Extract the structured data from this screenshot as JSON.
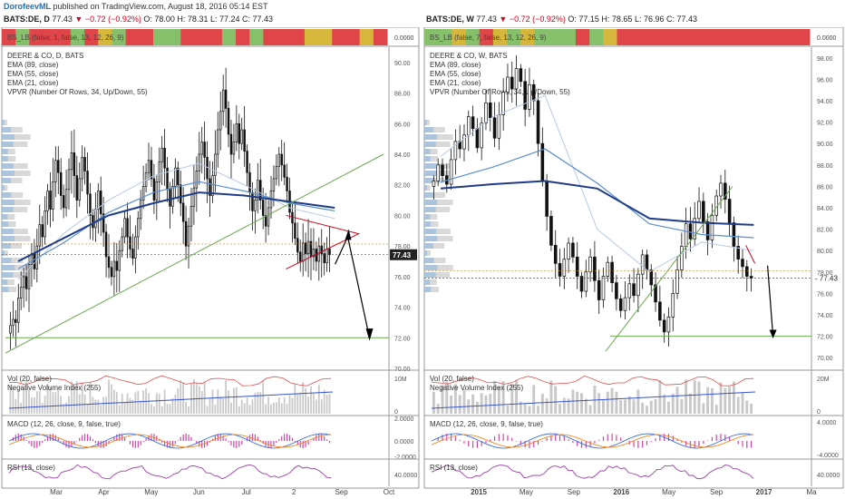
{
  "header": {
    "user": "DorofeevML",
    "published": "published on TradingView.com, August 18, 2016 05:14 EST"
  },
  "panels": [
    {
      "symbol_line": "BATS:DE, D",
      "last": "77.43",
      "change": "−0.72 (−0.92%)",
      "ohlc": "O: 78.00  H: 78.31  L: 77.24  C: 77.43",
      "indicator_strip_label": "BS_LB (false, 1, false, 13, 12, 26, 9)",
      "strip_value": "0.0000",
      "legend": [
        "DEERE & CO, D, BATS",
        "EMA (89, close)",
        "EMA (55, close)",
        "EMA (21, close)",
        "VPVR (Number Of Rows, 34, Up/Down, 55)"
      ],
      "price_ticks": [
        "90.00",
        "88.00",
        "86.00",
        "84.00",
        "82.00",
        "80.00",
        "78.00",
        "76.00",
        "74.00",
        "72.00",
        "70.00"
      ],
      "price_tag": "77.43",
      "vol_labels": [
        "Vol (20, false)",
        "Negative Volume Index (255)"
      ],
      "vol_ticks": [
        "10M",
        "0"
      ],
      "macd_label": "MACD (12, 26, close, 9, false, true)",
      "macd_ticks": [
        "2.0000",
        "0.0000",
        "-2.0000"
      ],
      "rsi_label": "RSI (13, close)",
      "rsi_ticks": [
        "40.0000"
      ],
      "time_ticks": [
        "Mar",
        "Apr",
        "May",
        "Jun",
        "Jul",
        "2",
        "Sep",
        "Oct"
      ]
    },
    {
      "symbol_line": "BATS:DE, W",
      "last": "77.43",
      "change": "−0.72 (−0.92%)",
      "ohlc": "O: 77.15  H: 78.65  L: 76.96  C: 77.43",
      "indicator_strip_label": "BS_LB (false, 7, false, 13, 12, 26, 9)",
      "strip_value": "0.0000",
      "legend": [
        "DEERE & CO, W, BATS",
        "EMA (89, close)",
        "EMA (55, close)",
        "EMA (21, close)",
        "VPVR (Number Of Rows, 34, Up/Down, 55)"
      ],
      "price_ticks": [
        "98.00",
        "96.00",
        "94.00",
        "92.00",
        "90.00",
        "88.00",
        "86.00",
        "84.00",
        "82.00",
        "80.00",
        "78.00",
        "76.00",
        "74.00",
        "72.00",
        "70.00"
      ],
      "price_tag": "77.43",
      "vol_labels": [
        "Vol (20, false)",
        "Negative Volume Index (255)"
      ],
      "vol_ticks": [
        "20M",
        "0"
      ],
      "macd_label": "MACD (12, 26, close, 9, false, true)",
      "macd_ticks": [
        "4.0000",
        "-4.0000"
      ],
      "rsi_label": "RSI (13, close)",
      "rsi_ticks": [
        "40.0000"
      ],
      "time_ticks": [
        "2015",
        "May",
        "Sep",
        "2016",
        "May",
        "Sep",
        "2017",
        "Ma"
      ]
    }
  ],
  "colors": {
    "ema89": "#1f3c88",
    "ema55": "#5b8fd0",
    "ema21": "#b7c9e6",
    "trend_green": "#6aa84f",
    "wedge_red": "#d0021b",
    "vol_bar": "#c8c8c8",
    "nvi_red": "#e05050",
    "nvi_blue": "#3355cc",
    "rsi": "#9b3fa8",
    "macd_blue": "#3b6fd6",
    "macd_orange": "#f08a24",
    "macd_hist": "#d444a8",
    "strip_red": "#e0454a",
    "strip_green": "#86c06a",
    "strip_yellow": "#d7b63c"
  },
  "chart_data": [
    {
      "type": "candlestick",
      "title": "DEERE & CO, D, BATS",
      "ylim": [
        70,
        91
      ],
      "x_ticks": [
        "Mar",
        "Apr",
        "May",
        "Jun",
        "Jul",
        "2",
        "Sep",
        "Oct"
      ],
      "closes": [
        72.8,
        73.2,
        73.0,
        74.6,
        75.3,
        76.0,
        75.2,
        76.8,
        77.5,
        76.5,
        78.0,
        79.4,
        78.6,
        80.3,
        81.6,
        80.4,
        82.2,
        83.6,
        82.8,
        81.3,
        80.5,
        81.7,
        83.0,
        84.1,
        82.6,
        81.0,
        82.4,
        83.8,
        82.9,
        81.4,
        80.0,
        79.2,
        80.4,
        81.6,
        80.1,
        78.9,
        77.3,
        76.6,
        76.0,
        77.0,
        76.4,
        77.7,
        78.6,
        79.8,
        78.6,
        77.8,
        77.2,
        78.6,
        79.8,
        81.0,
        81.9,
        82.8,
        83.6,
        82.4,
        81.0,
        82.2,
        83.5,
        84.4,
        83.1,
        81.7,
        80.6,
        81.9,
        83.1,
        82.0,
        80.8,
        79.6,
        78.0,
        79.3,
        80.6,
        81.8,
        82.9,
        84.0,
        84.8,
        83.8,
        82.4,
        81.3,
        82.6,
        84.0,
        85.6,
        86.8,
        88.2,
        87.0,
        85.3,
        84.0,
        84.8,
        86.0,
        84.7,
        85.6,
        84.2,
        82.8,
        81.5,
        80.3,
        81.0,
        82.3,
        81.0,
        80.0,
        79.3,
        80.5,
        81.6,
        82.4,
        83.2,
        84.0,
        83.3,
        82.5,
        81.6,
        80.2,
        79.5,
        78.5,
        77.6,
        77.0,
        78.2,
        77.5,
        78.3,
        77.3,
        77.8,
        77.0,
        78.0,
        77.5,
        76.9,
        77.8,
        77.43
      ],
      "ema89": [
        77.0,
        78.5,
        80.0,
        80.8,
        81.5,
        81.3,
        80.9,
        80.5
      ],
      "ema55": [
        76.5,
        78.2,
        80.2,
        81.5,
        82.2,
        81.6,
        80.8,
        80.3
      ],
      "ema21": [
        75.8,
        78.8,
        81.0,
        82.6,
        83.4,
        82.0,
        80.5,
        79.8
      ],
      "trendline": {
        "from": [
          0,
          71.0
        ],
        "to": [
          1,
          84.5
        ]
      },
      "horizontal_support": 72.0,
      "last_price": 77.43,
      "projection_target": 72.0
    },
    {
      "type": "candlestick",
      "title": "DEERE & CO, W, BATS",
      "ylim": [
        69,
        99
      ],
      "x_ticks": [
        "2015",
        "May",
        "Sep",
        "2016",
        "May",
        "Sep",
        "2017",
        "Ma"
      ],
      "closes": [
        86.5,
        88.0,
        87.0,
        86.2,
        88.5,
        90.2,
        89.5,
        90.8,
        92.5,
        91.4,
        89.6,
        91.9,
        93.8,
        92.4,
        90.5,
        92.7,
        94.8,
        96.2,
        95.1,
        97.0,
        95.8,
        93.2,
        95.5,
        94.0,
        90.0,
        86.5,
        83.2,
        80.5,
        78.8,
        77.6,
        79.2,
        80.7,
        79.4,
        77.6,
        76.2,
        78.0,
        79.4,
        77.2,
        75.4,
        77.6,
        78.9,
        77.0,
        75.5,
        74.4,
        75.6,
        76.9,
        75.8,
        77.8,
        79.6,
        78.2,
        76.8,
        75.2,
        73.5,
        72.4,
        73.8,
        76.0,
        78.2,
        80.4,
        82.5,
        81.1,
        83.0,
        84.6,
        82.7,
        81.0,
        83.3,
        85.1,
        86.3,
        84.8,
        82.6,
        80.4,
        79.2,
        78.5,
        77.6,
        77.43
      ],
      "ema89": [
        85.8,
        86.2,
        86.5,
        85.8,
        83.0,
        82.6,
        82.4
      ],
      "ema55": [
        86.4,
        87.8,
        89.5,
        86.3,
        82.5,
        81.5,
        81.2
      ],
      "ema21": [
        88.8,
        92.5,
        94.5,
        82.0,
        78.0,
        80.8,
        80.0
      ],
      "trendline": {
        "from": [
          0,
          71.0
        ],
        "to": [
          1,
          84.5
        ]
      },
      "horizontal_support": 72.0,
      "last_price": 77.43,
      "projection_target": 72.0
    }
  ]
}
